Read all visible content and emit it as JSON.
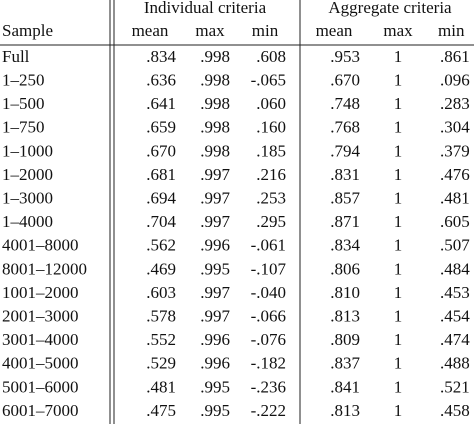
{
  "table": {
    "groups": [
      "Individual criteria",
      "Aggregate criteria"
    ],
    "columns": [
      "Sample",
      "mean",
      "max",
      "min",
      "mean",
      "max",
      "min"
    ],
    "rows": [
      [
        "Full",
        ".834",
        ".998",
        ".608",
        ".953",
        "1",
        ".861"
      ],
      [
        "1–250",
        ".636",
        ".998",
        "-.065",
        ".670",
        "1",
        ".096"
      ],
      [
        "1–500",
        ".641",
        ".998",
        ".060",
        ".748",
        "1",
        ".283"
      ],
      [
        "1–750",
        ".659",
        ".998",
        ".160",
        ".768",
        "1",
        ".304"
      ],
      [
        "1–1000",
        ".670",
        ".998",
        ".185",
        ".794",
        "1",
        ".379"
      ],
      [
        "1–2000",
        ".681",
        ".997",
        ".216",
        ".831",
        "1",
        ".476"
      ],
      [
        "1–3000",
        ".694",
        ".997",
        ".253",
        ".857",
        "1",
        ".481"
      ],
      [
        "1–4000",
        ".704",
        ".997",
        ".295",
        ".871",
        "1",
        ".605"
      ],
      [
        "4001–8000",
        ".562",
        ".996",
        "-.061",
        ".834",
        "1",
        ".507"
      ],
      [
        "8001–12000",
        ".469",
        ".995",
        "-.107",
        ".806",
        "1",
        ".484"
      ],
      [
        "1001–2000",
        ".603",
        ".997",
        "-.040",
        ".810",
        "1",
        ".453"
      ],
      [
        "2001–3000",
        ".578",
        ".997",
        "-.066",
        ".813",
        "1",
        ".454"
      ],
      [
        "3001–4000",
        ".552",
        ".996",
        "-.076",
        ".809",
        "1",
        ".474"
      ],
      [
        "4001–5000",
        ".529",
        ".996",
        "-.182",
        ".837",
        "1",
        ".488"
      ],
      [
        "5001–6000",
        ".481",
        ".995",
        "-.236",
        ".841",
        "1",
        ".521"
      ],
      [
        "6001–7000",
        ".475",
        ".995",
        "-.222",
        ".813",
        "1",
        ".458"
      ]
    ]
  }
}
